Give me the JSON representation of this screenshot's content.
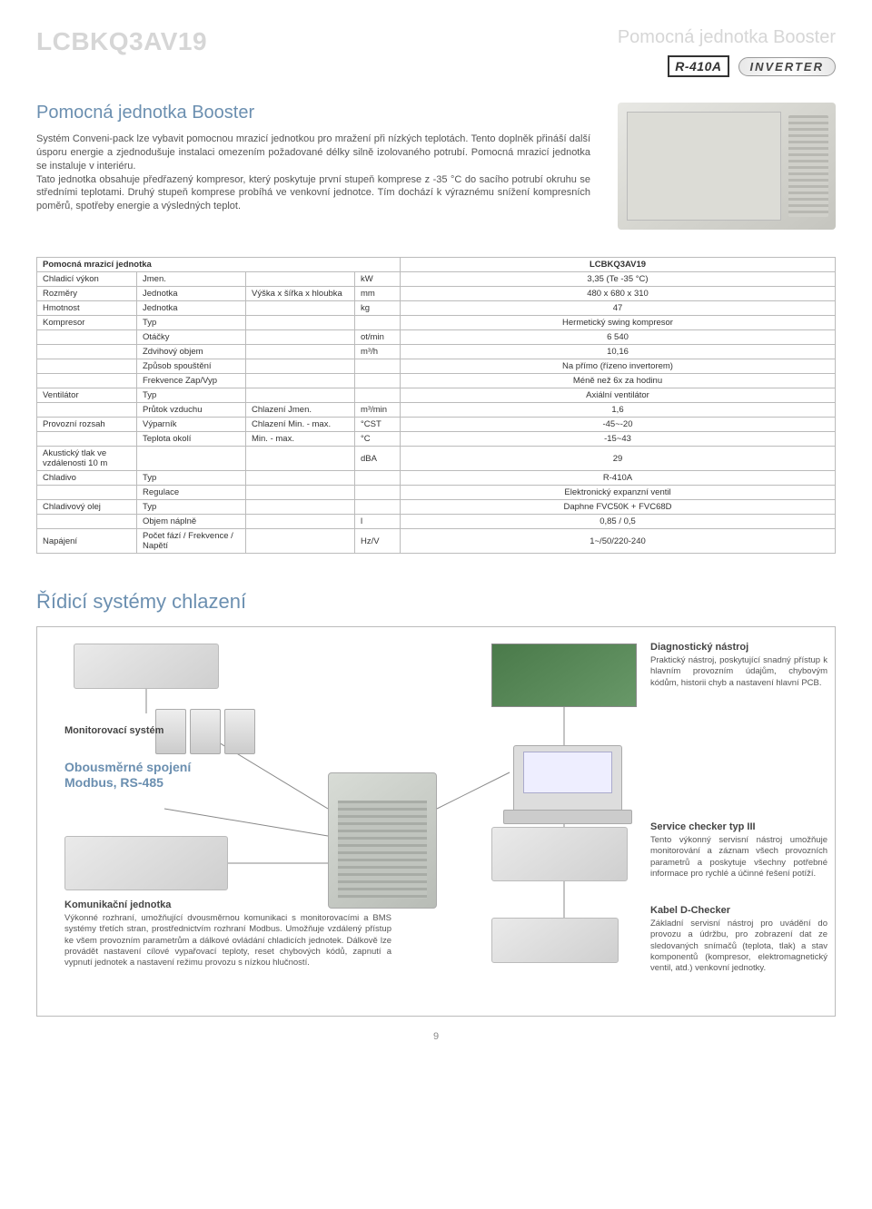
{
  "header": {
    "model": "LCBKQ3AV19",
    "subtitle": "Pomocná jednotka Booster",
    "badge_r410a": "R-410A",
    "badge_inverter": "INVERTER"
  },
  "intro": {
    "title": "Pomocná jednotka Booster",
    "paragraph": "Systém Conveni-pack lze vybavit pomocnou mrazicí jednotkou pro mražení při nízkých teplotách. Tento doplněk přináší další úsporu energie a zjednodušuje instalaci omezením požadované délky silně izolovaného potrubí. Pomocná mrazicí jednotka se instaluje v interiéru.\nTato jednotka obsahuje předřazený kompresor, který poskytuje první stupeň komprese z -35 °C do sacího potrubí okruhu se středními teplotami. Druhý stupeň komprese probíhá ve venkovní jednotce. Tím dochází k výraznému snížení kompresních poměrů, spotřeby energie a výsledných teplot."
  },
  "table": {
    "header_left": "Pomocná mrazicí jednotka",
    "header_right": "LCBKQ3AV19",
    "rows": [
      {
        "l1": "Chladicí výkon",
        "l2": "Jmen.",
        "l3": "",
        "u": "kW",
        "v": "3,35 (Te -35 °C)"
      },
      {
        "l1": "Rozměry",
        "l2": "Jednotka",
        "l3": "Výška x šířka x hloubka",
        "u": "mm",
        "v": "480 x 680 x 310"
      },
      {
        "l1": "Hmotnost",
        "l2": "Jednotka",
        "l3": "",
        "u": "kg",
        "v": "47"
      },
      {
        "l1": "Kompresor",
        "l2": "Typ",
        "l3": "",
        "u": "",
        "v": "Hermetický swing kompresor"
      },
      {
        "l1": "",
        "l2": "Otáčky",
        "l3": "",
        "u": "ot/min",
        "v": "6 540"
      },
      {
        "l1": "",
        "l2": "Zdvihový objem",
        "l3": "",
        "u": "m³/h",
        "v": "10,16"
      },
      {
        "l1": "",
        "l2": "Způsob spouštění",
        "l3": "",
        "u": "",
        "v": "Na přímo (řízeno invertorem)"
      },
      {
        "l1": "",
        "l2": "Frekvence Zap/Vyp",
        "l3": "",
        "u": "",
        "v": "Méně než 6x za hodinu"
      },
      {
        "l1": "Ventilátor",
        "l2": "Typ",
        "l3": "",
        "u": "",
        "v": "Axiální ventilátor"
      },
      {
        "l1": "",
        "l2": "Průtok vzduchu",
        "l3": "Chlazení  Jmen.",
        "u": "m³/min",
        "v": "1,6"
      },
      {
        "l1": "Provozní rozsah",
        "l2": "Výparník",
        "l3": "Chlazení  Min. - max.",
        "u": "°CST",
        "v": "-45~-20"
      },
      {
        "l1": "",
        "l2": "Teplota okolí",
        "l3": "Min. - max.",
        "u": "°C",
        "v": "-15~43"
      },
      {
        "l1": "Akustický tlak ve vzdálenosti 10 m",
        "l2": "",
        "l3": "",
        "u": "dBA",
        "v": "29"
      },
      {
        "l1": "Chladivo",
        "l2": "Typ",
        "l3": "",
        "u": "",
        "v": "R-410A"
      },
      {
        "l1": "",
        "l2": "Regulace",
        "l3": "",
        "u": "",
        "v": "Elektronický expanzní ventil"
      },
      {
        "l1": "Chladivový olej",
        "l2": "Typ",
        "l3": "",
        "u": "",
        "v": "Daphne FVC50K + FVC68D"
      },
      {
        "l1": "",
        "l2": "Objem náplně",
        "l3": "",
        "u": "l",
        "v": "0,85 / 0,5"
      },
      {
        "l1": "Napájení",
        "l2": "Počet fází / Frekvence / Napětí",
        "l3": "",
        "u": "Hz/V",
        "v": "1~/50/220-240"
      }
    ]
  },
  "cooling": {
    "title": "Řídicí systémy chlazení",
    "monitor_label": "Monitorovací systém",
    "modbus_title": "Obousměrné spojení Modbus, RS-485",
    "comm": {
      "title": "Komunikační jednotka",
      "body": "Výkonné rozhraní, umožňující dvousměrnou komunikaci s monitorovacími a BMS systémy třetích stran, prostřednictvím rozhraní Modbus. Umožňuje vzdálený přístup ke všem provozním parametrům a dálkové ovládání chladicích jednotek. Dálkově lze provádět nastavení cílové vypařovací teploty, reset chybových kódů, zapnutí a vypnutí jednotek a nastavení režimu provozu s nízkou hlučností."
    },
    "diag": {
      "title": "Diagnostický nástroj",
      "body": "Praktický nástroj, poskytující snadný přístup k hlavním provozním údajům, chybovým kódům, historii chyb a nastavení hlavní PCB."
    },
    "service": {
      "title": "Service checker typ III",
      "body": "Tento výkonný servisní nástroj umožňuje monitorování a záznam všech provozních parametrů a poskytuje všechny potřebné informace pro rychlé a účinné řešení potíží."
    },
    "kabel": {
      "title": "Kabel D-Checker",
      "body": "Základní servisní nástroj pro uvádění do provozu a údržbu, pro zobrazení dat ze sledovaných snímačů (teplota, tlak) a stav komponentů (kompresor, elektromagnetický ventil, atd.) venkovní jednotky."
    }
  },
  "page_number": "9",
  "colors": {
    "heading_blue": "#6b8fb0",
    "light_gray": "#d6d6d6",
    "border_gray": "#bbbbbb",
    "body_text": "#555555"
  }
}
